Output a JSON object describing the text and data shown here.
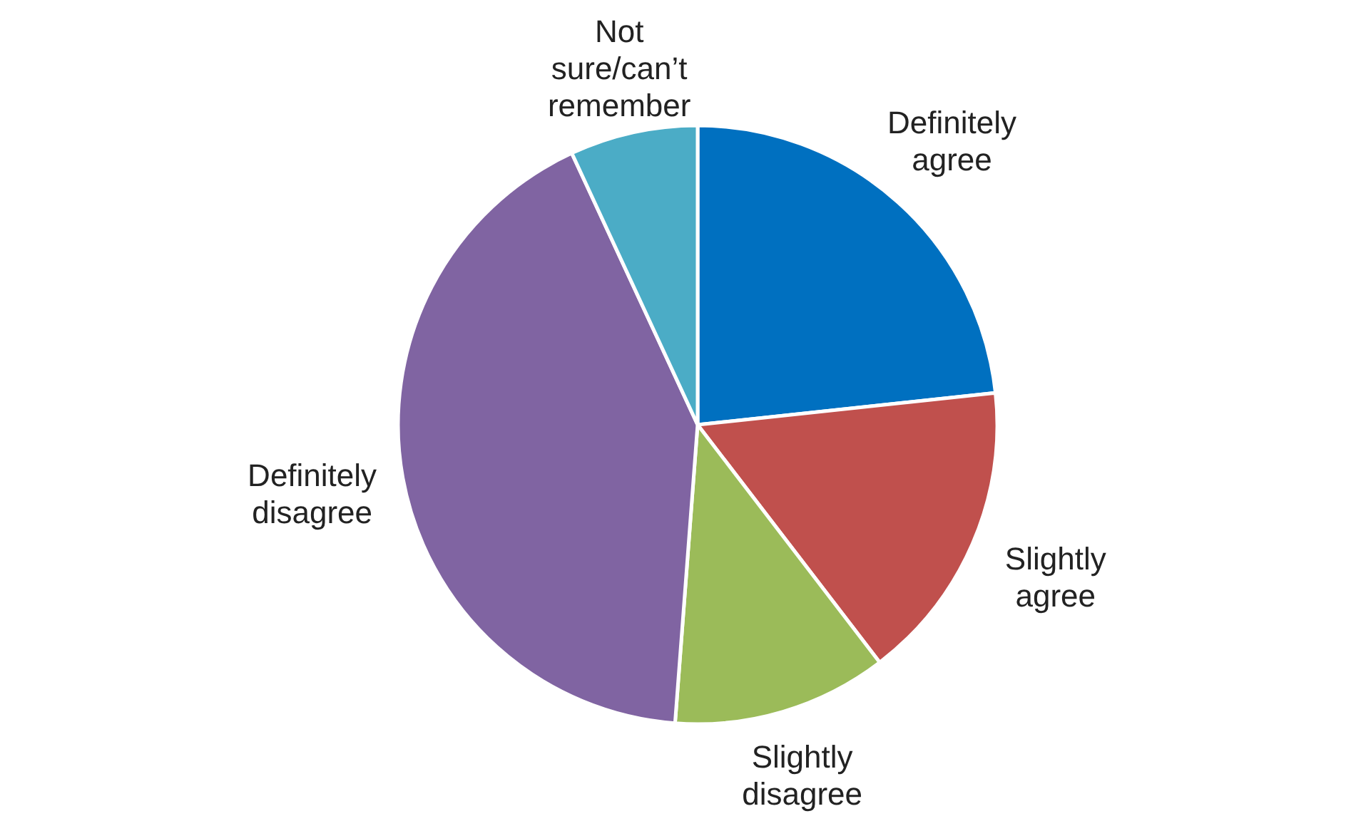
{
  "chart_data": {
    "type": "pie",
    "categories": [
      "Definitely agree",
      "Slightly agree",
      "Slightly disagree",
      "Definitely disagree",
      "Not sure/can’t remember"
    ],
    "values": [
      23.3,
      16.3,
      11.6,
      41.9,
      6.9
    ],
    "colors": [
      "#0070c0",
      "#c0504d",
      "#9bbb59",
      "#8064a2",
      "#4bacc6"
    ]
  }
}
